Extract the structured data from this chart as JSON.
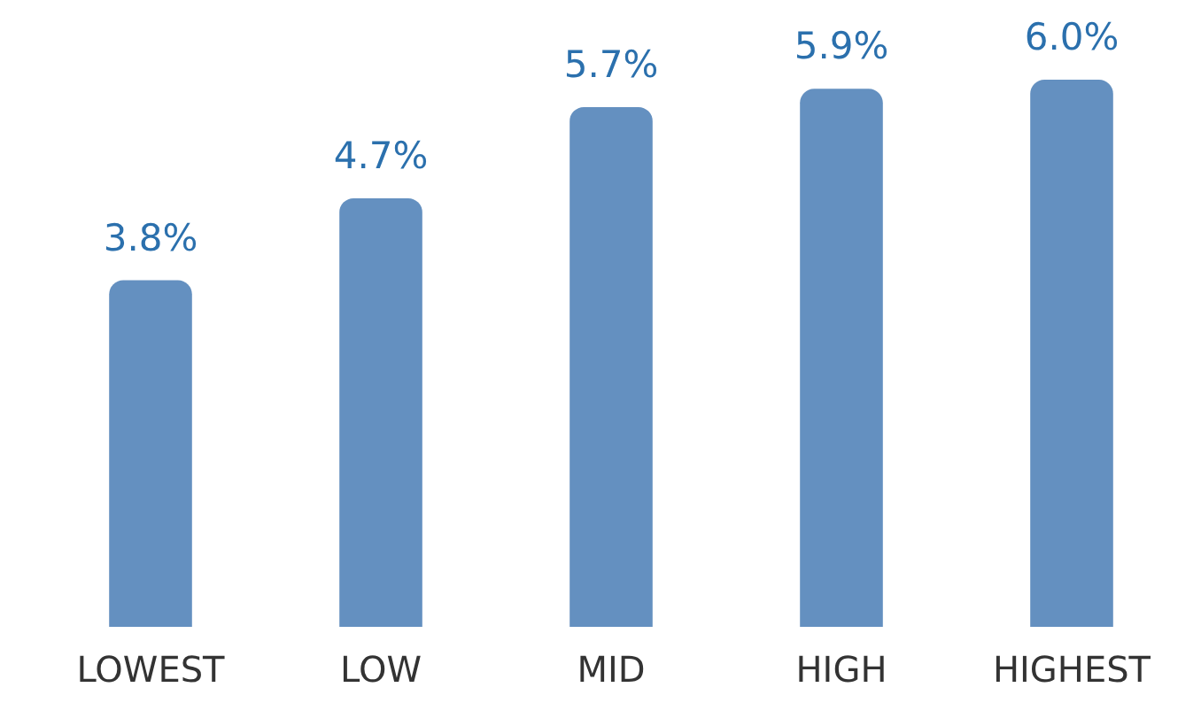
{
  "chart_data": {
    "type": "bar",
    "categories": [
      "LOWEST",
      "LOW",
      "MID",
      "HIGH",
      "HIGHEST"
    ],
    "values": [
      3.8,
      4.7,
      5.7,
      5.9,
      6.0
    ],
    "value_labels": [
      "3.8%",
      "4.7%",
      "5.7%",
      "5.9%",
      "6.0%"
    ],
    "color": "#6490c0",
    "tick_labels": "x",
    "grid": false,
    "legend": false
  }
}
